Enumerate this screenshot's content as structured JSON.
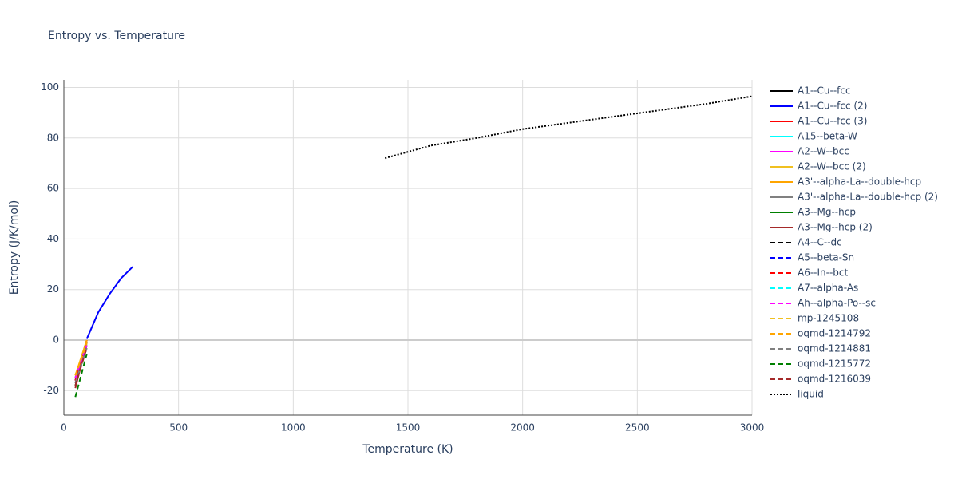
{
  "chart_data": {
    "type": "line",
    "title": "Entropy vs. Temperature",
    "x_label": "Temperature (K)",
    "y_label": "Entropy (J/K/mol)",
    "xlim": [
      0,
      3000
    ],
    "xticks": [
      0,
      500,
      1000,
      1500,
      2000,
      2500,
      3000
    ],
    "ylim": [
      -29.7,
      103
    ],
    "yticks": [
      -20,
      0,
      20,
      40,
      60,
      80,
      100
    ],
    "grid": true,
    "legend": "right",
    "series": [
      {
        "name": "A1--Cu--fcc",
        "color": "#000000",
        "dash": "solid",
        "x": [
          50,
          100
        ],
        "values": [
          -16,
          0
        ]
      },
      {
        "name": "A1--Cu--fcc (2)",
        "color": "#0000ff",
        "dash": "solid",
        "x": [
          100,
          150,
          200,
          250,
          300
        ],
        "values": [
          0.5,
          11,
          18.3,
          24.5,
          29
        ]
      },
      {
        "name": "A1--Cu--fcc (3)",
        "color": "#ff0000",
        "dash": "solid",
        "x": [
          50,
          100
        ],
        "values": [
          -16,
          0
        ]
      },
      {
        "name": "A15--beta-W",
        "color": "#00ffff",
        "dash": "solid",
        "x": [
          50,
          100
        ],
        "values": [
          -15,
          0
        ]
      },
      {
        "name": "A2--W--bcc",
        "color": "#ff00ff",
        "dash": "solid",
        "x": [
          50,
          100
        ],
        "values": [
          -15,
          0
        ]
      },
      {
        "name": "A2--W--bcc (2)",
        "color": "#f0c020",
        "dash": "solid",
        "x": [
          50,
          100
        ],
        "values": [
          -14,
          0
        ]
      },
      {
        "name": "A3'--alpha-La--double-hcp",
        "color": "#ffa500",
        "dash": "solid",
        "x": [
          50,
          100
        ],
        "values": [
          -15,
          0
        ]
      },
      {
        "name": "A3'--alpha-La--double-hcp (2)",
        "color": "#808080",
        "dash": "solid",
        "x": [
          50,
          100
        ],
        "values": [
          -17,
          -1
        ]
      },
      {
        "name": "A3--Mg--hcp",
        "color": "#008000",
        "dash": "solid",
        "x": [
          50,
          100
        ],
        "values": [
          -18,
          -2
        ]
      },
      {
        "name": "A3--Mg--hcp (2)",
        "color": "#a52a2a",
        "dash": "solid",
        "x": [
          50,
          100
        ],
        "values": [
          -19,
          -1
        ]
      },
      {
        "name": "A4--C--dc",
        "color": "#000000",
        "dash": "dash",
        "x": [
          50,
          100
        ],
        "values": [
          -17,
          -3
        ]
      },
      {
        "name": "A5--beta-Sn",
        "color": "#0000ff",
        "dash": "dash",
        "x": [
          50,
          100
        ],
        "values": [
          -16,
          -2
        ]
      },
      {
        "name": "A6--In--bct",
        "color": "#ff0000",
        "dash": "dash",
        "x": [
          50,
          100
        ],
        "values": [
          -16,
          -2
        ]
      },
      {
        "name": "A7--alpha-As",
        "color": "#00ffff",
        "dash": "dash",
        "x": [
          50,
          100
        ],
        "values": [
          -15,
          -2
        ]
      },
      {
        "name": "Ah--alpha-Po--sc",
        "color": "#ff00ff",
        "dash": "dash",
        "x": [
          50,
          100
        ],
        "values": [
          -15,
          -2
        ]
      },
      {
        "name": "mp-1245108",
        "color": "#f0c020",
        "dash": "dash",
        "x": [
          50,
          100
        ],
        "values": [
          -14,
          -1
        ]
      },
      {
        "name": "oqmd-1214792",
        "color": "#ffa500",
        "dash": "dash",
        "x": [
          50,
          100
        ],
        "values": [
          -14,
          -1
        ]
      },
      {
        "name": "oqmd-1214881",
        "color": "#808080",
        "dash": "dash",
        "x": [
          50,
          100
        ],
        "values": [
          -17,
          -3
        ]
      },
      {
        "name": "oqmd-1215772",
        "color": "#008000",
        "dash": "dash",
        "x": [
          50,
          100
        ],
        "values": [
          -22.5,
          -5.5
        ]
      },
      {
        "name": "oqmd-1216039",
        "color": "#a52a2a",
        "dash": "dash",
        "x": [
          50,
          100
        ],
        "values": [
          -18,
          -3
        ]
      },
      {
        "name": "liquid",
        "color": "#000000",
        "dash": "dot",
        "x": [
          1400,
          1600,
          1800,
          2000,
          2200,
          2400,
          2600,
          2800,
          3000
        ],
        "values": [
          72,
          77,
          80,
          83.5,
          86,
          88.5,
          91,
          93.5,
          96.5
        ]
      }
    ]
  }
}
